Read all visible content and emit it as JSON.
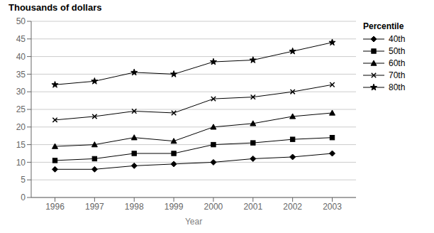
{
  "chart_data": {
    "type": "line",
    "title": "Thousands of dollars",
    "xlabel": "Year",
    "legend_title": "Percentile",
    "x": [
      1996,
      1997,
      1998,
      1999,
      2000,
      2001,
      2002,
      2003
    ],
    "series": [
      {
        "name": "40th",
        "color": "#000000",
        "marker": "diamond",
        "values": [
          8,
          8,
          9,
          9.5,
          10,
          11,
          11.5,
          12.5
        ]
      },
      {
        "name": "50th",
        "color": "#000000",
        "marker": "square",
        "values": [
          10.5,
          11,
          12.5,
          12.5,
          15,
          15.5,
          16.5,
          17
        ]
      },
      {
        "name": "60th",
        "color": "#000000",
        "marker": "triangle",
        "values": [
          14.5,
          15,
          17,
          16,
          20,
          21,
          23,
          24
        ]
      },
      {
        "name": "70th",
        "color": "#000000",
        "marker": "x",
        "values": [
          22,
          23,
          24.5,
          24,
          28,
          28.5,
          30,
          32
        ]
      },
      {
        "name": "80th",
        "color": "#000000",
        "marker": "star",
        "values": [
          32,
          33,
          35.5,
          35,
          38.5,
          39,
          41.5,
          44
        ]
      }
    ],
    "xlim": [
      1995.4,
      2003.6
    ],
    "xticks": [
      1996,
      1997,
      1998,
      1999,
      2000,
      2001,
      2002,
      2003
    ],
    "ylim": [
      0,
      50
    ],
    "yticks": [
      0,
      5,
      10,
      15,
      20,
      25,
      30,
      35,
      40,
      45,
      50
    ],
    "grid": "y",
    "legend": "right"
  }
}
